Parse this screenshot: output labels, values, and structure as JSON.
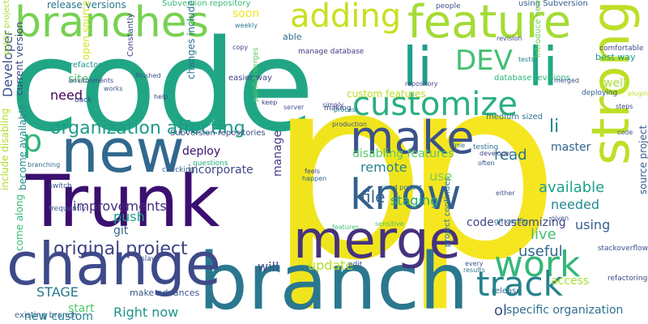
{
  "words": [
    {
      "text": "code",
      "color": "#21a685"
    },
    {
      "text": "p",
      "color": "#f0e51c"
    },
    {
      "text": "p",
      "color": "#f6e620"
    },
    {
      "text": "branch",
      "color": "#2a788e"
    },
    {
      "text": "Trunk",
      "color": "#3b0f70"
    },
    {
      "text": "new",
      "color": "#31688e"
    },
    {
      "text": "change",
      "color": "#3e4a89"
    },
    {
      "text": "branches",
      "color": "#77d153"
    },
    {
      "text": "merge",
      "color": "#46327e"
    },
    {
      "text": "strong",
      "color": "#bddf26"
    },
    {
      "text": "li",
      "color": "#1f9e89"
    },
    {
      "text": "li",
      "color": "#22a884"
    },
    {
      "text": "feature",
      "color": "#a5db36"
    },
    {
      "text": "make",
      "color": "#3b528b"
    },
    {
      "text": "customize",
      "color": "#2ab07f"
    },
    {
      "text": "know",
      "color": "#355f8d"
    },
    {
      "text": "work",
      "color": "#35b779"
    },
    {
      "text": "track",
      "color": "#26828e"
    },
    {
      "text": "adding",
      "color": "#c8e020"
    },
    {
      "text": "DEV",
      "color": "#43bf71"
    },
    {
      "text": "organization affecting",
      "color": "#1e9b8a"
    },
    {
      "text": "original project",
      "color": "#414487"
    },
    {
      "text": "li",
      "color": "#25848e"
    },
    {
      "text": "p",
      "color": "#2fb47c"
    },
    {
      "text": "remote",
      "color": "#26828e"
    },
    {
      "text": "file",
      "color": "#33638d"
    },
    {
      "text": "live",
      "color": "#44bf70"
    },
    {
      "text": "staging",
      "color": "#25ab82"
    },
    {
      "text": "update",
      "color": "#b5de2b"
    },
    {
      "text": "use",
      "color": "#7ad151"
    },
    {
      "text": "read",
      "color": "#2c728e"
    },
    {
      "text": "master",
      "color": "#32648e"
    },
    {
      "text": "available",
      "color": "#1fa088"
    },
    {
      "text": "needed",
      "color": "#238a8d"
    },
    {
      "text": "useful",
      "color": "#31688e"
    },
    {
      "text": "access",
      "color": "#addc30"
    },
    {
      "text": "will",
      "color": "#3e4c8a"
    },
    {
      "text": "STAGE",
      "color": "#2a768e"
    },
    {
      "text": "Right now",
      "color": "#1f948c"
    },
    {
      "text": "new custom",
      "color": "#277f8e"
    },
    {
      "text": "start",
      "color": "#52c569"
    },
    {
      "text": "ol",
      "color": "#3d4e8a"
    },
    {
      "text": "specific organization",
      "color": "#2d708e"
    },
    {
      "text": "using",
      "color": "#355f8d"
    },
    {
      "text": "code customizing",
      "color": "#404588"
    },
    {
      "text": "disabling features",
      "color": "#58c765"
    },
    {
      "text": "improvements",
      "color": "#472a7a"
    },
    {
      "text": "deploy",
      "color": "#3b0f70"
    },
    {
      "text": "incorporate",
      "color": "#3f4889"
    },
    {
      "text": "push",
      "color": "#1fa287"
    },
    {
      "text": "git",
      "color": "#34618d"
    },
    {
      "text": "need",
      "color": "#440154"
    },
    {
      "text": "site",
      "color": "#4ac16d"
    },
    {
      "text": "soon",
      "color": "#f1e51d"
    },
    {
      "text": "able",
      "color": "#2f6b8e"
    },
    {
      "text": "custom features",
      "color": "#b8de29"
    },
    {
      "text": "best way",
      "color": "#1e9c89"
    },
    {
      "text": "well",
      "color": "#a8db34"
    },
    {
      "text": "Developer",
      "color": "#3b528b"
    },
    {
      "text": "current version",
      "color": "#3e4989"
    },
    {
      "text": "include disabling",
      "color": "#b2dd2d"
    },
    {
      "text": "become available",
      "color": "#228c8d"
    },
    {
      "text": "open source",
      "color": "#d5e21a"
    },
    {
      "text": "changes include",
      "color": "#2c738e"
    },
    {
      "text": "make advances",
      "color": "#39568c"
    },
    {
      "text": "project continues",
      "color": "#2a768e"
    },
    {
      "text": "source project",
      "color": "#375b8d"
    },
    {
      "text": "public project",
      "color": "#addc30"
    },
    {
      "text": "release versions",
      "color": "#2a788e"
    },
    {
      "text": "Subversion repository",
      "color": "#3bbb75"
    },
    {
      "text": "using Subversion",
      "color": "#365c8d"
    },
    {
      "text": "introduce new",
      "color": "#6ece58"
    },
    {
      "text": "easier way",
      "color": "#404688"
    },
    {
      "text": "Subversion repositories",
      "color": "#3e4a89"
    },
    {
      "text": "come along",
      "color": "#35b779"
    },
    {
      "text": "existing branch",
      "color": "#31688e"
    },
    {
      "text": "Constantly",
      "color": "#414487"
    },
    {
      "text": "refactor",
      "color": "#21918c"
    },
    {
      "text": "manage",
      "color": "#424086"
    },
    {
      "text": "medium sized",
      "color": "#2e6e8e"
    },
    {
      "text": "release",
      "color": "#2c718e"
    },
    {
      "text": "database revisions",
      "color": "#2fb47c"
    },
    {
      "text": "manage database",
      "color": "#443a83"
    },
    {
      "text": "stackoverflow",
      "color": "#3b528b"
    },
    {
      "text": "git config",
      "color": "#2a788e"
    },
    {
      "text": "slave",
      "color": "#3e4c8a"
    },
    {
      "text": "painful merges",
      "color": "#5ec962"
    },
    {
      "text": "questions",
      "color": "#25ac82"
    },
    {
      "text": "checking",
      "color": "#34618d"
    },
    {
      "text": "making",
      "color": "#414487"
    },
    {
      "text": "edit",
      "color": "#3a538b"
    },
    {
      "text": "testing",
      "color": "#2d708e"
    },
    {
      "text": "switch",
      "color": "#39568c"
    },
    {
      "text": "frequently",
      "color": "#3b528b"
    },
    {
      "text": "back",
      "color": "#3e4a89"
    },
    {
      "text": "people",
      "color": "#3b528b"
    },
    {
      "text": "comfortable",
      "color": "#3e4a89"
    },
    {
      "text": "deploying",
      "color": "#365c8d"
    },
    {
      "text": "refactoring",
      "color": "#404688"
    },
    {
      "text": "production",
      "color": "#3d4e8a"
    },
    {
      "text": "process",
      "color": "#277f8e"
    },
    {
      "text": "branching",
      "color": "#2e6e8e"
    },
    {
      "text": "environments",
      "color": "#414487"
    },
    {
      "text": "sized project",
      "color": "#2e6e8e"
    },
    {
      "text": "feels",
      "color": "#404588"
    },
    {
      "text": "given",
      "color": "#3d4e8a"
    },
    {
      "text": "developer",
      "color": "#3e4989"
    },
    {
      "text": "features",
      "color": "#43bf71"
    },
    {
      "text": "sensitive",
      "color": "#4ac16d"
    },
    {
      "text": "happen",
      "color": "#32648e"
    },
    {
      "text": "repository",
      "color": "#404588"
    },
    {
      "text": "revision",
      "color": "#3e4a89"
    },
    {
      "text": "finished",
      "color": "#3a538b"
    },
    {
      "text": "results",
      "color": "#2a788e"
    },
    {
      "text": "every",
      "color": "#3b528b"
    },
    {
      "text": "time",
      "color": "#2c718e"
    },
    {
      "text": "help",
      "color": "#404688"
    },
    {
      "text": "copy",
      "color": "#3f4889"
    },
    {
      "text": "server",
      "color": "#3b528b"
    },
    {
      "text": "simply",
      "color": "#3e4c8a"
    },
    {
      "text": "often",
      "color": "#39568c"
    },
    {
      "text": "plugin",
      "color": "#b8de29"
    },
    {
      "text": "weekly",
      "color": "#2a788e"
    },
    {
      "text": "keep",
      "color": "#3e4a89"
    },
    {
      "text": "steps",
      "color": "#404688"
    },
    {
      "text": "merged",
      "color": "#3b528b"
    },
    {
      "text": "either",
      "color": "#3a538b"
    },
    {
      "text": "tests",
      "color": "#277f8e"
    },
    {
      "text": "works",
      "color": "#365c8d"
    },
    {
      "text": "code",
      "color": "#3b528b"
    },
    {
      "text": "small",
      "color": "#3e4c8a"
    }
  ]
}
